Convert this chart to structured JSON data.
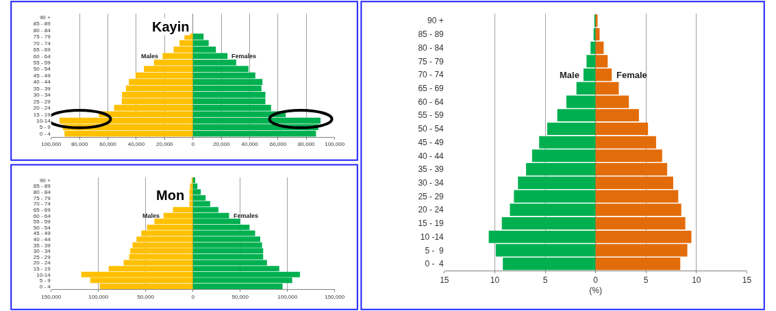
{
  "chart_data": [
    {
      "type": "bar",
      "orientation": "horizontal",
      "title": "Kayin",
      "categories": [
        "90 +",
        "85 - 89",
        "80 - 84",
        "75 - 79",
        "70 - 74",
        "65 - 69",
        "60 - 64",
        "55 - 59",
        "50 - 54",
        "45 - 49",
        "40 - 44",
        "35 - 39",
        "30 - 34",
        "25 - 29",
        "20 - 24",
        "15 - 19",
        "10-14",
        "5 - 9",
        "0 - 4"
      ],
      "series": [
        {
          "name": "Males",
          "color": "#ffc000",
          "values": [
            null,
            null,
            null,
            -6000,
            -9500,
            -13600,
            -21400,
            -27500,
            -34600,
            -40500,
            -45200,
            -47300,
            -50000,
            -50200,
            -55600,
            -66300,
            -94100,
            -91700,
            -90600
          ]
        },
        {
          "name": "Females",
          "color": "#00b050",
          "values": [
            null,
            null,
            null,
            7500,
            11100,
            16200,
            24400,
            30500,
            39200,
            44000,
            49000,
            48300,
            51100,
            51100,
            55100,
            65400,
            90000,
            88400,
            86800
          ]
        }
      ],
      "xlim": [
        -100000,
        100000
      ],
      "xticks": [
        {
          "value": -100000,
          "label": "100,000"
        },
        {
          "value": -80000,
          "label": "80,000"
        },
        {
          "value": -60000,
          "label": "60,000"
        },
        {
          "value": -40000,
          "label": "40,000"
        },
        {
          "value": -20000,
          "label": "20,000"
        },
        0,
        {
          "value": 20000,
          "label": "20,000"
        },
        {
          "value": 40000,
          "label": "40,000"
        },
        {
          "value": 60000,
          "label": "60,000"
        },
        {
          "value": 80000,
          "label": "80,000"
        },
        {
          "value": 100000,
          "label": "100,000"
        }
      ],
      "grid": "x",
      "stacked": true
    },
    {
      "type": "bar",
      "orientation": "horizontal",
      "title": "Mon",
      "categories": [
        "90 +",
        "85 - 89",
        "80 - 84",
        "75 - 79",
        "70 - 74",
        "65 - 69",
        "60 - 64",
        "55 - 59",
        "50 - 54",
        "45 - 49",
        "40 - 44",
        "35 - 39",
        "30 - 34",
        "25 - 29",
        "20 - 24",
        "15 - 19",
        "10-14",
        "5 - 9",
        "0 - 4"
      ],
      "series": [
        {
          "name": "Males",
          "color": "#ffc000",
          "values": [
            -1400,
            -3100,
            -3800,
            -3800,
            -3800,
            -21200,
            -31100,
            -40800,
            -48600,
            -54700,
            -59700,
            -63900,
            -66300,
            -67500,
            -73300,
            -89200,
            -118200,
            -108700,
            -98600
          ]
        },
        {
          "name": "Females",
          "color": "#00b050",
          "values": [
            2400,
            4700,
            8300,
            13400,
            18200,
            26900,
            38200,
            50000,
            59900,
            65800,
            71200,
            73100,
            74300,
            74300,
            78300,
            91300,
            113200,
            105000,
            94800
          ]
        }
      ],
      "xlim": [
        -150000,
        150000
      ],
      "xticks": [
        {
          "value": -150000,
          "label": "150,000"
        },
        {
          "value": -100000,
          "label": "100,000"
        },
        {
          "value": -50000,
          "label": "50,000"
        },
        0,
        {
          "value": 50000,
          "label": "50,000"
        },
        {
          "value": 100000,
          "label": "100,000"
        },
        {
          "value": 150000,
          "label": "150,000"
        }
      ],
      "grid": "x",
      "stacked": true
    },
    {
      "type": "bar",
      "orientation": "horizontal",
      "xlabel": "(%)",
      "categories": [
        "90 +",
        "85 - 89",
        "80 - 84",
        "75 - 79",
        "70 - 74",
        "65 - 69",
        "60 - 64",
        "55 - 59",
        "50 - 54",
        "45 - 49",
        "40 - 44",
        "35 - 39",
        "30 - 34",
        "25 - 29",
        "20 - 24",
        "15 - 19",
        "10 -14",
        "5 -  9",
        "0 -  4"
      ],
      "series": [
        {
          "name": "Male",
          "color": "#00b050",
          "values": [
            -0.1,
            -0.2,
            -0.5,
            -0.9,
            -1.2,
            -1.9,
            -2.9,
            -3.8,
            -4.8,
            -5.6,
            -6.3,
            -6.9,
            -7.7,
            -8.1,
            -8.5,
            -9.3,
            -10.6,
            -9.9,
            -9.2
          ]
        },
        {
          "name": "Female",
          "color": "#e36c0a",
          "values": [
            0.2,
            0.4,
            0.8,
            1.2,
            1.6,
            2.3,
            3.3,
            4.3,
            5.2,
            6.0,
            6.6,
            7.1,
            7.7,
            8.2,
            8.5,
            8.9,
            9.5,
            9.1,
            8.4
          ]
        }
      ],
      "xlim": [
        -15,
        15
      ],
      "xticks": [
        {
          "value": -15,
          "label": "15"
        },
        {
          "value": -10,
          "label": "10"
        },
        {
          "value": -5,
          "label": "5"
        },
        0,
        5,
        10,
        15
      ],
      "grid": "x",
      "stacked": true
    }
  ]
}
